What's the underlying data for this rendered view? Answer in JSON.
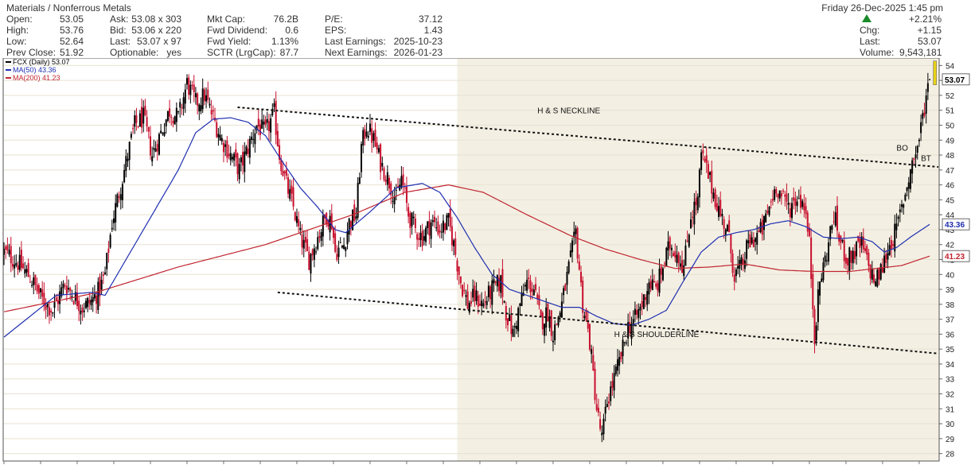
{
  "header": {
    "sector": "Materials / Nonferrous Metals",
    "date": "Friday  26-Dec-2025  1:45 pm",
    "pct_change": "+2.21%",
    "change_label": "Chg:",
    "change_value": "+1.15",
    "last_label": "Last:",
    "last_value": "53.07",
    "volume_label": "Volume:",
    "volume_value": "9,543,181",
    "rows": [
      [
        {
          "l": "Open:",
          "v": "53.05"
        },
        {
          "l": "Ask:",
          "v": "53.08 x 303"
        },
        {
          "l": "Mkt Cap:",
          "v": "76.2B"
        },
        {
          "l": "P/E:",
          "v": "37.12"
        }
      ],
      [
        {
          "l": "High:",
          "v": "53.76"
        },
        {
          "l": "Bid:",
          "v": "53.06 x 220"
        },
        {
          "l": "Fwd Dividend:",
          "v": "0.6"
        },
        {
          "l": "EPS:",
          "v": "1.43"
        }
      ],
      [
        {
          "l": "Low:",
          "v": "52.64"
        },
        {
          "l": "Last:",
          "v": "53.07 x 97"
        },
        {
          "l": "Fwd Yield:",
          "v": "1.13%"
        },
        {
          "l": "Last Earnings:",
          "v": "2025-10-23"
        }
      ],
      [
        {
          "l": "Prev Close:",
          "v": "51.92"
        },
        {
          "l": "Optionable:",
          "v": "yes"
        },
        {
          "l": "SCTR (LrgCap):",
          "v": "87.7"
        },
        {
          "l": "Next Earnings:",
          "v": "2026-01-23"
        }
      ]
    ]
  },
  "legend": [
    {
      "text": "FCX (Daily) 53.07",
      "color": "#000000"
    },
    {
      "text": "MA(50) 43.36",
      "color": "#1f2fb0"
    },
    {
      "text": "MA(200) 41.23",
      "color": "#c0242e"
    }
  ],
  "colors": {
    "up": "#000000",
    "down": "#c8102e",
    "ma50": "#1f2fb0",
    "ma200": "#c0242e",
    "shade": "#f3efe3",
    "badge_last": "#ffffff",
    "badge_ma50": "#1f2fb0",
    "badge_ma200": "#c0242e"
  },
  "chart_data": {
    "type": "candlestick",
    "symbol": "FCX",
    "ylim": [
      27.5,
      54.5
    ],
    "yticks": [
      28,
      29,
      30,
      31,
      32,
      33,
      34,
      35,
      36,
      37,
      38,
      39,
      40,
      41,
      42,
      43,
      44,
      45,
      46,
      47,
      48,
      49,
      50,
      51,
      52,
      53,
      54
    ],
    "value_badges": [
      {
        "value": 53.07,
        "text": "53.07",
        "style": "last"
      },
      {
        "value": 43.36,
        "text": "43.36",
        "style": "ma50"
      },
      {
        "value": 41.23,
        "text": "41.23",
        "style": "ma200"
      }
    ],
    "close_anchors": [
      [
        0,
        41.5
      ],
      [
        8,
        40.8
      ],
      [
        15,
        39.8
      ],
      [
        22,
        38.3
      ],
      [
        28,
        37.6
      ],
      [
        35,
        39.4
      ],
      [
        40,
        38.6
      ],
      [
        45,
        37.8
      ],
      [
        50,
        38.2
      ],
      [
        55,
        39.0
      ],
      [
        58,
        40.0
      ],
      [
        62,
        43.5
      ],
      [
        66,
        45.5
      ],
      [
        70,
        47.5
      ],
      [
        75,
        50.0
      ],
      [
        80,
        50.5
      ],
      [
        85,
        48.0
      ],
      [
        90,
        49.5
      ],
      [
        95,
        51.0
      ],
      [
        100,
        50.5
      ],
      [
        105,
        52.8
      ],
      [
        110,
        51.5
      ],
      [
        115,
        52.0
      ],
      [
        120,
        50.5
      ],
      [
        125,
        49.0
      ],
      [
        130,
        48.0
      ],
      [
        135,
        47.0
      ],
      [
        140,
        48.5
      ],
      [
        145,
        50.0
      ],
      [
        150,
        49.5
      ],
      [
        155,
        50.8
      ],
      [
        158,
        48.0
      ],
      [
        162,
        46.0
      ],
      [
        166,
        44.5
      ],
      [
        170,
        42.5
      ],
      [
        175,
        41.0
      ],
      [
        180,
        42.5
      ],
      [
        185,
        44.0
      ],
      [
        188,
        43.5
      ],
      [
        190,
        41.5
      ],
      [
        195,
        42.0
      ],
      [
        198,
        43.5
      ],
      [
        202,
        44.0
      ],
      [
        205,
        48.5
      ],
      [
        208,
        50.0
      ],
      [
        212,
        49.0
      ],
      [
        216,
        47.5
      ],
      [
        220,
        46.5
      ],
      [
        225,
        45.0
      ],
      [
        228,
        46.5
      ],
      [
        232,
        44.0
      ],
      [
        236,
        43.0
      ],
      [
        240,
        42.5
      ],
      [
        245,
        43.5
      ],
      [
        250,
        43.0
      ],
      [
        255,
        43.5
      ],
      [
        258,
        42.0
      ],
      [
        262,
        39.5
      ],
      [
        266,
        38.0
      ],
      [
        270,
        38.5
      ],
      [
        275,
        38.0
      ],
      [
        280,
        39.0
      ],
      [
        285,
        39.5
      ],
      [
        288,
        37.5
      ],
      [
        292,
        36.0
      ],
      [
        296,
        38.0
      ],
      [
        300,
        39.5
      ],
      [
        304,
        39.0
      ],
      [
        308,
        36.8
      ],
      [
        312,
        37.5
      ],
      [
        315,
        36.0
      ],
      [
        320,
        38.0
      ],
      [
        325,
        41.0
      ],
      [
        328,
        42.8
      ],
      [
        332,
        38.0
      ],
      [
        336,
        35.5
      ],
      [
        340,
        31.0
      ],
      [
        343,
        29.0
      ],
      [
        346,
        31.5
      ],
      [
        350,
        33.0
      ],
      [
        354,
        34.5
      ],
      [
        358,
        36.5
      ],
      [
        362,
        37.0
      ],
      [
        366,
        38.0
      ],
      [
        370,
        39.5
      ],
      [
        374,
        39.0
      ],
      [
        378,
        40.5
      ],
      [
        382,
        42.0
      ],
      [
        386,
        41.5
      ],
      [
        390,
        40.5
      ],
      [
        394,
        44.0
      ],
      [
        398,
        45.0
      ],
      [
        400,
        48.0
      ],
      [
        403,
        47.0
      ],
      [
        407,
        45.5
      ],
      [
        411,
        44.0
      ],
      [
        415,
        43.0
      ],
      [
        419,
        40.0
      ],
      [
        423,
        40.5
      ],
      [
        427,
        42.0
      ],
      [
        431,
        42.5
      ],
      [
        435,
        43.0
      ],
      [
        439,
        44.5
      ],
      [
        443,
        46.0
      ],
      [
        447,
        45.0
      ],
      [
        451,
        44.5
      ],
      [
        455,
        45.2
      ],
      [
        459,
        44.8
      ],
      [
        462,
        42.0
      ],
      [
        465,
        36.0
      ],
      [
        468,
        39.5
      ],
      [
        472,
        41.5
      ],
      [
        476,
        44.0
      ],
      [
        480,
        42.0
      ],
      [
        484,
        41.0
      ],
      [
        488,
        41.5
      ],
      [
        492,
        42.0
      ],
      [
        496,
        40.5
      ],
      [
        500,
        39.5
      ],
      [
        504,
        40.5
      ],
      [
        508,
        42.0
      ],
      [
        512,
        43.0
      ],
      [
        515,
        44.5
      ],
      [
        518,
        46.0
      ],
      [
        521,
        47.5
      ],
      [
        524,
        48.5
      ],
      [
        527,
        50.5
      ],
      [
        529,
        52.0
      ],
      [
        531,
        53.07
      ]
    ],
    "ma50_anchors": [
      [
        0,
        35.8
      ],
      [
        30,
        38.6
      ],
      [
        50,
        38.8
      ],
      [
        58,
        38.6
      ],
      [
        70,
        41.0
      ],
      [
        85,
        44.0
      ],
      [
        100,
        47.0
      ],
      [
        110,
        49.5
      ],
      [
        120,
        50.4
      ],
      [
        130,
        50.5
      ],
      [
        140,
        50.2
      ],
      [
        150,
        49.3
      ],
      [
        160,
        47.5
      ],
      [
        170,
        45.8
      ],
      [
        180,
        44.5
      ],
      [
        190,
        43.0
      ],
      [
        196,
        42.8
      ],
      [
        210,
        44.2
      ],
      [
        225,
        45.8
      ],
      [
        240,
        46.1
      ],
      [
        250,
        45.5
      ],
      [
        260,
        43.8
      ],
      [
        270,
        41.8
      ],
      [
        280,
        40.0
      ],
      [
        290,
        39.0
      ],
      [
        300,
        38.6
      ],
      [
        310,
        38.2
      ],
      [
        320,
        37.8
      ],
      [
        330,
        37.8
      ],
      [
        340,
        37.2
      ],
      [
        350,
        36.7
      ],
      [
        360,
        36.6
      ],
      [
        370,
        37.0
      ],
      [
        380,
        37.6
      ],
      [
        390,
        39.6
      ],
      [
        400,
        41.5
      ],
      [
        410,
        42.5
      ],
      [
        420,
        42.8
      ],
      [
        430,
        43.0
      ],
      [
        440,
        43.4
      ],
      [
        450,
        43.6
      ],
      [
        460,
        43.2
      ],
      [
        470,
        42.5
      ],
      [
        480,
        42.4
      ],
      [
        490,
        42.5
      ],
      [
        498,
        42.2
      ],
      [
        505,
        41.5
      ],
      [
        512,
        41.8
      ],
      [
        520,
        42.5
      ],
      [
        531,
        43.36
      ]
    ],
    "ma200_anchors": [
      [
        0,
        37.5
      ],
      [
        50,
        38.7
      ],
      [
        100,
        40.5
      ],
      [
        150,
        42.0
      ],
      [
        200,
        44.0
      ],
      [
        230,
        45.5
      ],
      [
        255,
        46.0
      ],
      [
        275,
        45.5
      ],
      [
        300,
        44.0
      ],
      [
        325,
        42.6
      ],
      [
        345,
        41.7
      ],
      [
        365,
        41.0
      ],
      [
        385,
        40.4
      ],
      [
        405,
        40.5
      ],
      [
        425,
        40.7
      ],
      [
        445,
        40.3
      ],
      [
        465,
        40.2
      ],
      [
        485,
        40.2
      ],
      [
        500,
        40.4
      ],
      [
        515,
        40.6
      ],
      [
        531,
        41.23
      ]
    ],
    "annotations": [
      {
        "text": "H & S NECKLINE",
        "x": 306,
        "y": 50.8
      },
      {
        "text": "H & S SHOULDERLINE",
        "x": 350,
        "y": 35.8
      },
      {
        "text": "BO",
        "x": 512,
        "y": 48.3
      },
      {
        "text": "BT",
        "x": 526,
        "y": 47.6
      }
    ],
    "trendlines": [
      {
        "name": "neckline",
        "x1": 134,
        "y1": 51.2,
        "x2": 536,
        "y2": 47.2
      },
      {
        "name": "shoulderline",
        "x1": 157,
        "y1": 38.8,
        "x2": 536,
        "y2": 34.7
      }
    ],
    "shaded_period_start": 260,
    "last_marker": {
      "x": 534,
      "low": 52.7,
      "high": 54.3
    }
  }
}
